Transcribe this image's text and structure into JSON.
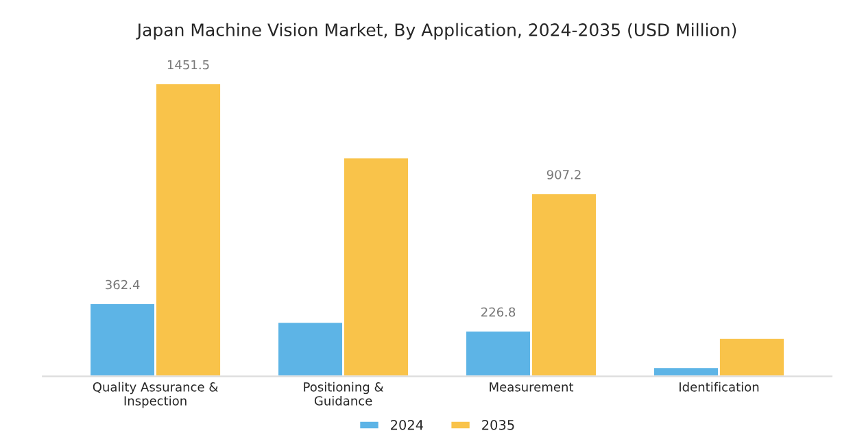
{
  "chart_data": {
    "type": "bar",
    "title": "Japan Machine Vision Market, By Application, 2024-2035 (USD Million)",
    "categories": [
      "Quality Assurance &\nInspection",
      "Positioning &\nGuidance",
      "Measurement",
      "Identification"
    ],
    "data_labels": false,
    "series": [
      {
        "name": "2024",
        "color": "#5db4e6",
        "values": [
          362.4,
          270,
          226.8,
          46
        ],
        "value_labels": [
          "362.4",
          null,
          "226.8",
          null
        ]
      },
      {
        "name": "2035",
        "color": "#f9c34a",
        "values": [
          1451.5,
          1084,
          907.2,
          190
        ],
        "value_labels": [
          "1451.5",
          null,
          "907.2",
          null
        ]
      }
    ],
    "legend": "bottom",
    "grid": false
  }
}
